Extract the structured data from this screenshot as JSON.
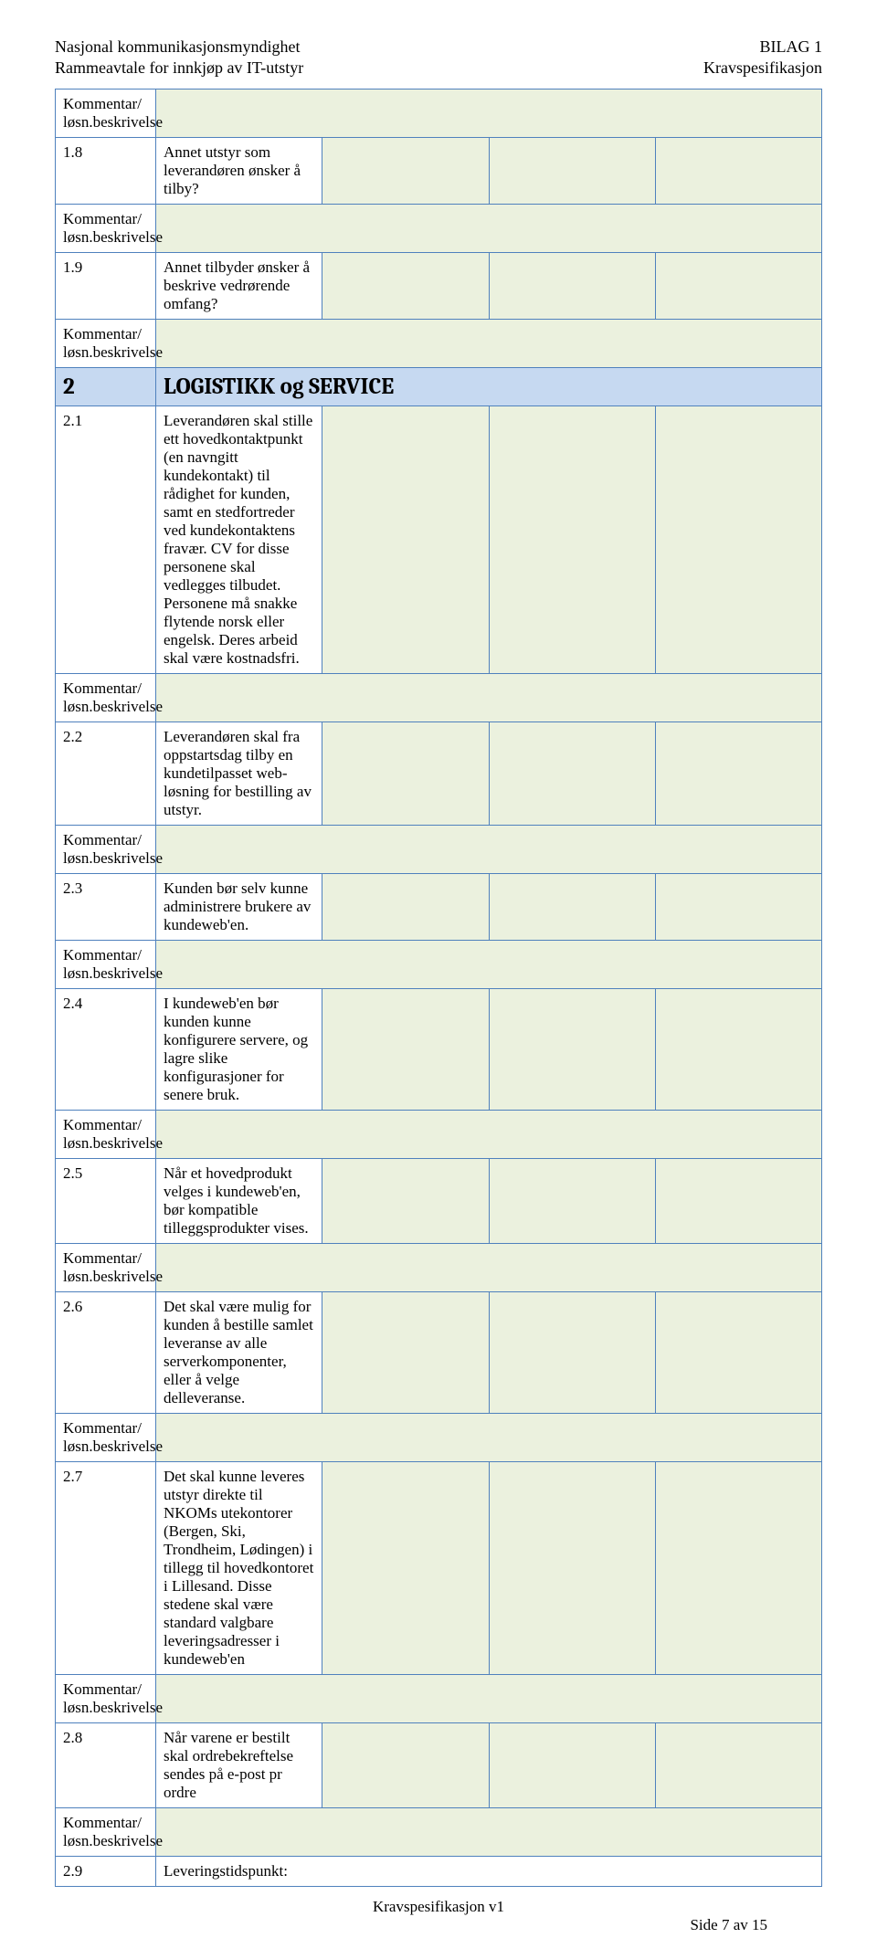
{
  "header": {
    "left_line1": "Nasjonal kommunikasjonsmyndighet",
    "left_line2": "Rammeavtale for innkjøp av IT-utstyr",
    "right_line1": "BILAG 1",
    "right_line2": "Kravspesifikasjon"
  },
  "labels": {
    "comment": "Kommentar/ løsn.beskrivelse"
  },
  "section": {
    "id": "2",
    "title": "LOGISTIKK og SERVICE"
  },
  "rows": {
    "r18": {
      "id": "1.8",
      "desc": "Annet utstyr som leverandøren ønsker å tilby?"
    },
    "r19": {
      "id": "1.9",
      "desc": "Annet tilbyder ønsker å beskrive vedrørende omfang?"
    },
    "r21": {
      "id": "2.1",
      "desc": "Leverandøren skal stille ett hovedkontaktpunkt (en navngitt kundekontakt) til rådighet for kunden, samt en stedfortreder ved kundekontaktens fravær. CV for disse personene skal vedlegges tilbudet. Personene må snakke flytende norsk eller engelsk. Deres arbeid skal være kostnadsfri."
    },
    "r22": {
      "id": "2.2",
      "desc": "Leverandøren skal fra oppstartsdag tilby en kundetilpasset web-løsning for bestilling av utstyr."
    },
    "r23": {
      "id": "2.3",
      "desc": "Kunden bør selv kunne administrere brukere av kundeweb'en."
    },
    "r24": {
      "id": "2.4",
      "desc": "I kundeweb'en bør kunden kunne konfigurere servere, og lagre slike konfigurasjoner for senere bruk."
    },
    "r25": {
      "id": "2.5",
      "desc": "Når et hovedprodukt velges i kundeweb'en, bør kompatible tilleggsprodukter vises."
    },
    "r26": {
      "id": "2.6",
      "desc": "Det skal være mulig for kunden å bestille samlet leveranse av alle serverkomponenter, eller å velge delleveranse."
    },
    "r27": {
      "id": "2.7",
      "desc": "Det skal kunne leveres utstyr direkte til NKOMs utekontorer (Bergen, Ski, Trondheim, Lødingen) i tillegg til hovedkontoret i Lillesand. Disse stedene skal være standard valgbare leveringsadresser i kundeweb'en"
    },
    "r28": {
      "id": "2.8",
      "desc": "Når varene er bestilt skal ordrebekreftelse sendes på e-post pr ordre"
    },
    "r29": {
      "id": "2.9",
      "desc": "Leveringstidspunkt:"
    }
  },
  "footer": {
    "center": "Kravspesifikasjon v1",
    "right": "Side 7 av 15"
  }
}
